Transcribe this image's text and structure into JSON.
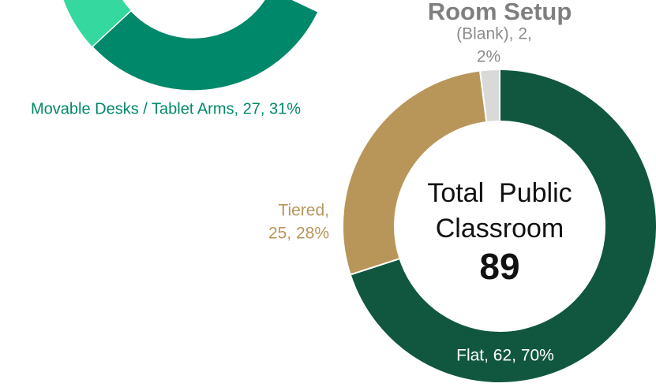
{
  "chart_data": [
    {
      "type": "donut",
      "categories": [
        "Movable Desks / Tablet Arms"
      ],
      "values": [
        31
      ],
      "labels": [
        "Movable Desks / Tablet Arms, 27, 31%"
      ],
      "colors": [
        "#00886a"
      ]
    },
    {
      "type": "donut",
      "title": "Room Setup",
      "categories": [
        "Flat",
        "Tiered",
        "(Blank)"
      ],
      "values": [
        70,
        28,
        2
      ],
      "labels": [
        [
          "Flat, 62, 70%"
        ],
        [
          "Tiered,",
          "25, 28%"
        ],
        [
          "(Blank), 2,",
          "2%"
        ]
      ],
      "colors": [
        "#11573f",
        "#b8965a",
        "#d9d9d9"
      ],
      "center_text": [
        "Total  Public",
        "Classroom"
      ],
      "center_value": 89
    }
  ]
}
